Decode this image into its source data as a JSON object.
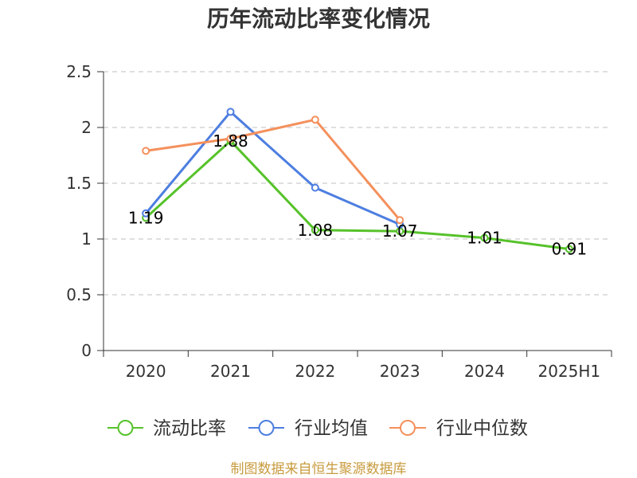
{
  "chart_data": {
    "type": "line",
    "title": "历年流动比率变化情况",
    "categories": [
      "2020",
      "2021",
      "2022",
      "2023",
      "2024",
      "2025H1"
    ],
    "ylim": [
      0,
      2.5
    ],
    "yticks": [
      0,
      0.5,
      1,
      1.5,
      2,
      2.5
    ],
    "grid": true,
    "legend_position": "bottom",
    "series": [
      {
        "name": "流动比率",
        "color": "#56c22a",
        "values": [
          1.19,
          1.88,
          1.08,
          1.07,
          1.01,
          0.91
        ],
        "show_data_labels": true
      },
      {
        "name": "行业均值",
        "color": "#4d7ee0",
        "values": [
          1.23,
          2.14,
          1.46,
          1.13,
          null,
          null
        ],
        "show_data_labels": false
      },
      {
        "name": "行业中位数",
        "color": "#f4905c",
        "values": [
          1.79,
          1.9,
          2.07,
          1.17,
          null,
          null
        ],
        "show_data_labels": false
      }
    ]
  },
  "source_note": "制图数据来自恒生聚源数据库",
  "colors": {
    "background": "#ffffff",
    "source_note": "#c89b3f",
    "axis": "#333333",
    "grid": "#cccccc"
  }
}
